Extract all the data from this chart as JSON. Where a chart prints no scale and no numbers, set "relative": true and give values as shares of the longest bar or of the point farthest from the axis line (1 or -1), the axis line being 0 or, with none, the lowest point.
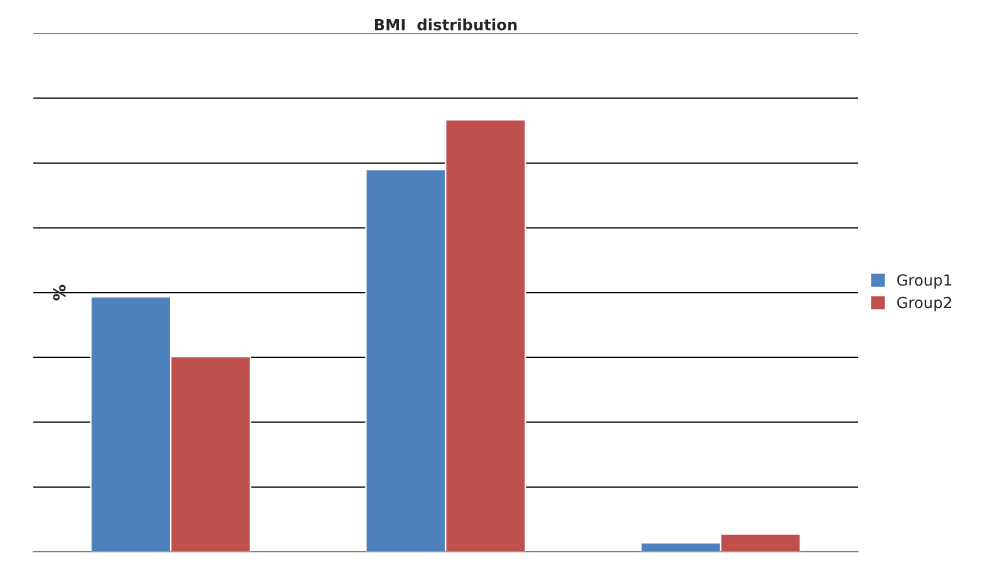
{
  "chart_data": {
    "type": "bar",
    "title": "BMI  distribution",
    "ylabel": "%",
    "relative": true,
    "grid": "y",
    "legend": "right",
    "categories": [
      null,
      null,
      null
    ],
    "series": [
      {
        "name": "Group1",
        "color": "#4f81bd",
        "values": [
          0.59,
          0.885,
          0.021
        ]
      },
      {
        "name": "Group2",
        "color": "#c0504d",
        "values": [
          0.452,
          1,
          0.041
        ]
      }
    ]
  }
}
